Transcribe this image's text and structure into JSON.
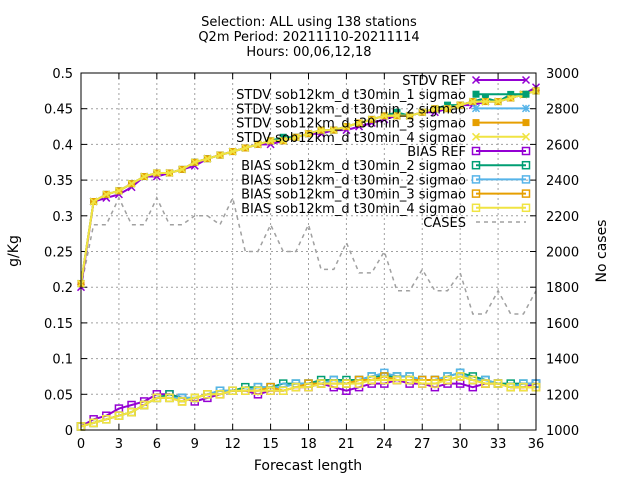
{
  "chart_data": {
    "type": "line",
    "title_lines": [
      "Selection: ALL using    138 stations",
      "Q2m   Period: 20211110-20211114",
      "Hours: 00,06,12,18"
    ],
    "xlabel": "Forecast length",
    "ylabel": "g/Kg",
    "y2label": "No cases",
    "xlim": [
      0,
      36
    ],
    "ylim": [
      0,
      0.5
    ],
    "y2lim": [
      1000,
      3000
    ],
    "xticks": [
      "0",
      "3",
      "6",
      "9",
      "12",
      "15",
      "18",
      "21",
      "24",
      "27",
      "30",
      "33",
      "36"
    ],
    "yticks": [
      "0",
      "0.05",
      "0.1",
      "0.15",
      "0.2",
      "0.25",
      "0.3",
      "0.35",
      "0.4",
      "0.45",
      "0.5"
    ],
    "y2ticks": [
      "1000",
      "1200",
      "1400",
      "1600",
      "1800",
      "2000",
      "2200",
      "2400",
      "2600",
      "2800",
      "3000"
    ],
    "grid": true,
    "legend_position": "top-right",
    "x": [
      0,
      1,
      2,
      3,
      4,
      5,
      6,
      7,
      8,
      9,
      10,
      11,
      12,
      13,
      14,
      15,
      16,
      17,
      18,
      19,
      20,
      21,
      22,
      23,
      24,
      25,
      26,
      27,
      28,
      29,
      30,
      31,
      32,
      33,
      34,
      35,
      36
    ],
    "series": [
      {
        "name": "STDV REF",
        "color": "#9400d3",
        "marker": "x",
        "axis": "y",
        "values": [
          0.2,
          0.32,
          0.325,
          0.33,
          0.34,
          0.355,
          0.355,
          0.36,
          0.365,
          0.37,
          0.38,
          0.385,
          0.39,
          0.395,
          0.4,
          0.4,
          0.405,
          0.41,
          0.415,
          0.415,
          0.42,
          0.42,
          0.425,
          0.43,
          0.435,
          0.44,
          0.44,
          0.445,
          0.445,
          0.45,
          0.455,
          0.455,
          0.46,
          0.46,
          0.465,
          0.47,
          0.48
        ]
      },
      {
        "name": "STDV sob12km_d t30min_1 sigmao",
        "color": "#009e73",
        "marker": "filled-square",
        "axis": "y",
        "values": [
          0.205,
          0.32,
          0.33,
          0.335,
          0.345,
          0.355,
          0.36,
          0.36,
          0.365,
          0.375,
          0.38,
          0.385,
          0.39,
          0.395,
          0.4,
          0.405,
          0.41,
          0.41,
          0.415,
          0.42,
          0.42,
          0.425,
          0.43,
          0.435,
          0.44,
          0.445,
          0.44,
          0.445,
          0.45,
          0.455,
          0.455,
          0.46,
          0.465,
          0.46,
          0.47,
          0.47,
          0.475
        ]
      },
      {
        "name": "STDV sob12km_d t30min_2 sigmao",
        "color": "#56b4e9",
        "marker": "star",
        "axis": "y",
        "values": [
          0.205,
          0.32,
          0.33,
          0.335,
          0.345,
          0.355,
          0.36,
          0.36,
          0.365,
          0.375,
          0.38,
          0.385,
          0.39,
          0.395,
          0.4,
          0.405,
          0.405,
          0.41,
          0.415,
          0.42,
          0.42,
          0.425,
          0.43,
          0.435,
          0.44,
          0.44,
          0.44,
          0.445,
          0.45,
          0.45,
          0.455,
          0.46,
          0.46,
          0.46,
          0.465,
          0.47,
          0.475
        ]
      },
      {
        "name": "STDV sob12km_d t30min_3 sigmao",
        "color": "#e69f00",
        "marker": "filled-square",
        "axis": "y",
        "values": [
          0.205,
          0.32,
          0.33,
          0.335,
          0.345,
          0.355,
          0.36,
          0.36,
          0.365,
          0.375,
          0.38,
          0.385,
          0.39,
          0.395,
          0.4,
          0.405,
          0.405,
          0.41,
          0.415,
          0.42,
          0.42,
          0.425,
          0.43,
          0.435,
          0.44,
          0.44,
          0.44,
          0.445,
          0.45,
          0.45,
          0.455,
          0.46,
          0.46,
          0.46,
          0.465,
          0.47,
          0.475
        ]
      },
      {
        "name": "STDV sob12km_d t30min_4 sigmao",
        "color": "#f0e442",
        "marker": "x",
        "axis": "y",
        "values": [
          0.205,
          0.32,
          0.33,
          0.335,
          0.345,
          0.355,
          0.36,
          0.36,
          0.365,
          0.375,
          0.38,
          0.385,
          0.39,
          0.395,
          0.4,
          0.405,
          0.405,
          0.41,
          0.415,
          0.42,
          0.42,
          0.425,
          0.43,
          0.435,
          0.44,
          0.44,
          0.44,
          0.445,
          0.45,
          0.45,
          0.455,
          0.46,
          0.46,
          0.46,
          0.465,
          0.47,
          0.475
        ]
      },
      {
        "name": "BIAS REF",
        "color": "#9400d3",
        "marker": "open-square",
        "axis": "y",
        "values": [
          0.005,
          0.015,
          0.02,
          0.03,
          0.035,
          0.04,
          0.05,
          0.05,
          0.045,
          0.04,
          0.045,
          0.05,
          0.055,
          0.055,
          0.05,
          0.055,
          0.055,
          0.06,
          0.06,
          0.065,
          0.06,
          0.055,
          0.06,
          0.065,
          0.065,
          0.07,
          0.065,
          0.065,
          0.06,
          0.065,
          0.065,
          0.06,
          0.065,
          0.065,
          0.06,
          0.06,
          0.065
        ]
      },
      {
        "name": "BIAS sob12km_d t30min_2 sigmao",
        "color": "#009e73",
        "marker": "open-square",
        "axis": "y",
        "values": [
          0.005,
          0.01,
          0.015,
          0.02,
          0.025,
          0.035,
          0.045,
          0.05,
          0.045,
          0.045,
          0.05,
          0.055,
          0.055,
          0.06,
          0.06,
          0.06,
          0.065,
          0.065,
          0.065,
          0.07,
          0.07,
          0.07,
          0.07,
          0.075,
          0.075,
          0.075,
          0.075,
          0.07,
          0.07,
          0.075,
          0.08,
          0.075,
          0.07,
          0.065,
          0.065,
          0.065,
          0.065
        ]
      },
      {
        "name": "BIAS sob12km_d t30min_2 sigmao",
        "color": "#56b4e9",
        "marker": "open-square",
        "axis": "y",
        "values": [
          0.005,
          0.01,
          0.015,
          0.02,
          0.025,
          0.035,
          0.045,
          0.045,
          0.045,
          0.045,
          0.05,
          0.055,
          0.055,
          0.055,
          0.06,
          0.06,
          0.06,
          0.065,
          0.065,
          0.065,
          0.07,
          0.065,
          0.07,
          0.075,
          0.08,
          0.075,
          0.075,
          0.07,
          0.07,
          0.075,
          0.08,
          0.07,
          0.07,
          0.065,
          0.06,
          0.065,
          0.065
        ]
      },
      {
        "name": "BIAS sob12km_d t30min_3 sigmao",
        "color": "#e69f00",
        "marker": "open-square",
        "axis": "y",
        "values": [
          0.005,
          0.01,
          0.015,
          0.02,
          0.025,
          0.035,
          0.045,
          0.045,
          0.04,
          0.045,
          0.05,
          0.05,
          0.055,
          0.055,
          0.055,
          0.06,
          0.055,
          0.06,
          0.065,
          0.065,
          0.065,
          0.065,
          0.07,
          0.07,
          0.075,
          0.07,
          0.07,
          0.07,
          0.07,
          0.07,
          0.075,
          0.07,
          0.065,
          0.065,
          0.06,
          0.06,
          0.06
        ]
      },
      {
        "name": "BIAS sob12km_d t30min_4 sigmao",
        "color": "#f0e442",
        "marker": "open-square",
        "axis": "y",
        "values": [
          0.005,
          0.01,
          0.015,
          0.02,
          0.025,
          0.035,
          0.045,
          0.045,
          0.04,
          0.045,
          0.05,
          0.05,
          0.055,
          0.055,
          0.055,
          0.055,
          0.055,
          0.06,
          0.06,
          0.065,
          0.065,
          0.065,
          0.065,
          0.07,
          0.07,
          0.07,
          0.07,
          0.065,
          0.065,
          0.07,
          0.075,
          0.07,
          0.065,
          0.065,
          0.06,
          0.06,
          0.06
        ]
      },
      {
        "name": "CASES",
        "color": "#a0a0a0",
        "dashed": true,
        "marker": "none",
        "axis": "y2",
        "values": [
          1800,
          2150,
          2150,
          2300,
          2150,
          2150,
          2300,
          2150,
          2150,
          2200,
          2200,
          2150,
          2300,
          2000,
          2000,
          2150,
          2000,
          2000,
          2150,
          1900,
          1900,
          2050,
          1880,
          1880,
          2000,
          1780,
          1780,
          1900,
          1780,
          1780,
          1880,
          1650,
          1650,
          1780,
          1650,
          1650,
          1780
        ]
      }
    ]
  }
}
